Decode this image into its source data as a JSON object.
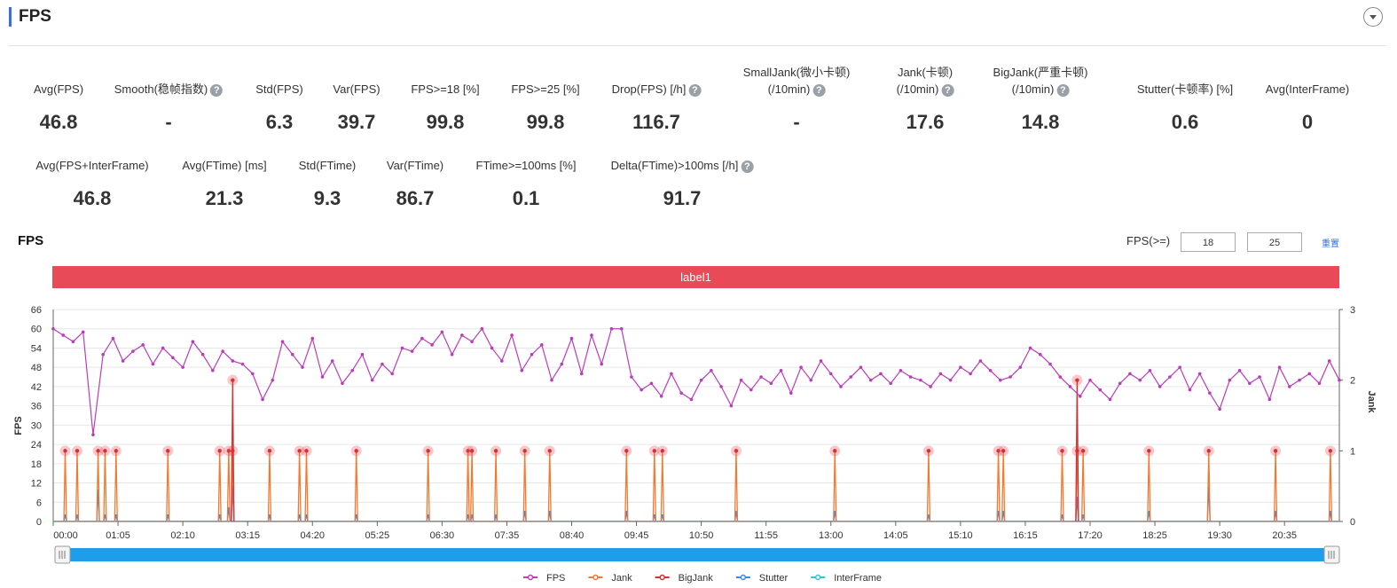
{
  "header": {
    "title": "FPS"
  },
  "metrics": [
    {
      "label": [
        "Avg(FPS)"
      ],
      "value": 46.8,
      "help": false
    },
    {
      "label": [
        "Smooth(稳帧指数)"
      ],
      "value": "-",
      "help": true
    },
    {
      "label": [
        "Std(FPS)"
      ],
      "value": 6.3,
      "help": false
    },
    {
      "label": [
        "Var(FPS)"
      ],
      "value": 39.7,
      "help": false
    },
    {
      "label": [
        "FPS>=18 [%]"
      ],
      "value": 99.8,
      "help": false
    },
    {
      "label": [
        "FPS>=25 [%]"
      ],
      "value": 99.8,
      "help": false
    },
    {
      "label": [
        "Drop(FPS) [/h]"
      ],
      "value": 116.7,
      "help": true
    },
    {
      "label": [
        "SmallJank(微小卡顿)",
        "(/10min)"
      ],
      "value": "-",
      "help": true
    },
    {
      "label": [
        "Jank(卡顿)",
        "(/10min)"
      ],
      "value": 17.6,
      "help": true
    },
    {
      "label": [
        "BigJank(严重卡顿)",
        "(/10min)"
      ],
      "value": 14.8,
      "help": true
    },
    {
      "label": [
        "Stutter(卡顿率) [%]"
      ],
      "value": 0.6,
      "help": false
    },
    {
      "label": [
        "Avg(InterFrame)"
      ],
      "value": 0,
      "help": false
    },
    {
      "label": [
        "Avg(FPS+InterFrame)"
      ],
      "value": 46.8,
      "help": false
    },
    {
      "label": [
        "Avg(FTime) [ms]"
      ],
      "value": 21.3,
      "help": false
    },
    {
      "label": [
        "Std(FTime)"
      ],
      "value": 9.3,
      "help": false
    },
    {
      "label": [
        "Var(FTime)"
      ],
      "value": 86.7,
      "help": false
    },
    {
      "label": [
        "FTime>=100ms [%]"
      ],
      "value": 0.1,
      "help": false
    },
    {
      "label": [
        "Delta(FTime)>100ms [/h]"
      ],
      "value": 91.7,
      "help": true
    }
  ],
  "controls": {
    "label": "FPS(>=)",
    "inputs": [
      18,
      25
    ],
    "reset": "重置"
  },
  "chart_data": {
    "type": "line",
    "title": "FPS",
    "band_label": "label1",
    "y_label": "FPS",
    "y2_label": "Jank",
    "xlim": [
      0,
      1290
    ],
    "xticks": [
      {
        "value": 0,
        "label": "00:00"
      },
      {
        "value": 65,
        "label": "01:05"
      },
      {
        "value": 130,
        "label": "02:10"
      },
      {
        "value": 195,
        "label": "03:15"
      },
      {
        "value": 260,
        "label": "04:20"
      },
      {
        "value": 325,
        "label": "05:25"
      },
      {
        "value": 390,
        "label": "06:30"
      },
      {
        "value": 455,
        "label": "07:35"
      },
      {
        "value": 520,
        "label": "08:40"
      },
      {
        "value": 585,
        "label": "09:45"
      },
      {
        "value": 650,
        "label": "10:50"
      },
      {
        "value": 715,
        "label": "11:55"
      },
      {
        "value": 780,
        "label": "13:00"
      },
      {
        "value": 845,
        "label": "14:05"
      },
      {
        "value": 910,
        "label": "15:10"
      },
      {
        "value": 975,
        "label": "16:15"
      },
      {
        "value": 1040,
        "label": "17:20"
      },
      {
        "value": 1105,
        "label": "18:25"
      },
      {
        "value": 1170,
        "label": "19:30"
      },
      {
        "value": 1235,
        "label": "20:35"
      }
    ],
    "ylim": [
      0,
      66
    ],
    "yticks": [
      0,
      6,
      12,
      18,
      24,
      30,
      36,
      42,
      48,
      54,
      60,
      66
    ],
    "y2lim": [
      0,
      3
    ],
    "y2ticks": [
      0,
      1,
      2,
      3
    ],
    "grid": true,
    "series": [
      {
        "name": "FPS",
        "color": "#bb3cbb",
        "axis": "y",
        "x": [
          0,
          10,
          20,
          30,
          40,
          50,
          60,
          70,
          80,
          90,
          100,
          110,
          120,
          130,
          140,
          150,
          160,
          170,
          180,
          190,
          200,
          210,
          220,
          230,
          240,
          250,
          260,
          270,
          280,
          290,
          300,
          310,
          320,
          330,
          340,
          350,
          360,
          370,
          380,
          390,
          400,
          410,
          420,
          430,
          440,
          450,
          460,
          470,
          480,
          490,
          500,
          510,
          520,
          530,
          540,
          550,
          560,
          570,
          580,
          590,
          600,
          610,
          620,
          630,
          640,
          650,
          660,
          670,
          680,
          690,
          700,
          710,
          720,
          730,
          740,
          750,
          760,
          770,
          780,
          790,
          800,
          810,
          820,
          830,
          840,
          850,
          860,
          870,
          880,
          890,
          900,
          910,
          920,
          930,
          940,
          950,
          960,
          970,
          980,
          990,
          1000,
          1010,
          1020,
          1030,
          1040,
          1050,
          1060,
          1070,
          1080,
          1090,
          1100,
          1110,
          1120,
          1130,
          1140,
          1150,
          1160,
          1170,
          1180,
          1190,
          1200,
          1210,
          1220,
          1230,
          1240,
          1250,
          1260,
          1270,
          1280,
          1290
        ],
        "values": [
          60,
          58,
          56,
          59,
          27,
          52,
          57,
          50,
          53,
          55,
          49,
          54,
          51,
          48,
          56,
          52,
          47,
          53,
          50,
          49,
          46,
          38,
          44,
          56,
          52,
          48,
          57,
          45,
          50,
          43,
          47,
          52,
          44,
          49,
          46,
          54,
          53,
          57,
          55,
          59,
          52,
          58,
          56,
          60,
          54,
          50,
          58,
          47,
          52,
          55,
          44,
          49,
          57,
          46,
          58,
          49,
          60,
          60,
          45,
          41,
          43,
          39,
          46,
          40,
          38,
          44,
          47,
          42,
          36,
          44,
          41,
          45,
          43,
          47,
          40,
          48,
          44,
          50,
          46,
          42,
          45,
          48,
          44,
          46,
          43,
          47,
          45,
          44,
          42,
          46,
          44,
          48,
          46,
          50,
          47,
          44,
          45,
          48,
          54,
          52,
          49,
          45,
          42,
          39,
          44,
          41,
          38,
          43,
          46,
          44,
          47,
          42,
          45,
          48,
          41,
          46,
          40,
          35,
          44,
          47,
          43,
          45,
          38,
          48,
          42,
          44,
          46,
          43,
          50,
          44
        ]
      },
      {
        "name": "Jank",
        "color": "#f07a30",
        "axis": "y2",
        "x": [
          12,
          24,
          45,
          52,
          63,
          115,
          167,
          176,
          180,
          217,
          247,
          254,
          304,
          376,
          416,
          420,
          444,
          473,
          498,
          575,
          603,
          611,
          685,
          784,
          878,
          948,
          953,
          1012,
          1027,
          1033,
          1099,
          1159,
          1226,
          1281
        ],
        "values": [
          1,
          1,
          1,
          1,
          1,
          1,
          1,
          1,
          1,
          1,
          1,
          1,
          1,
          1,
          1,
          1,
          1,
          1,
          1,
          1,
          1,
          1,
          1,
          1,
          1,
          1,
          1,
          1,
          1,
          1,
          1,
          1,
          1,
          1
        ]
      },
      {
        "name": "BigJank",
        "color": "#d8302e",
        "axis": "y2",
        "x": [
          180,
          1027
        ],
        "values": [
          2,
          2
        ]
      },
      {
        "name": "Stutter",
        "color": "#3f86e8",
        "axis": "y2",
        "x": [
          12,
          24,
          45,
          52,
          63,
          115,
          167,
          176,
          180,
          217,
          247,
          254,
          304,
          376,
          416,
          420,
          444,
          473,
          498,
          575,
          603,
          611,
          685,
          784,
          878,
          948,
          953,
          1012,
          1027,
          1033,
          1099,
          1159,
          1226,
          1281
        ],
        "values": [
          0.1,
          0.1,
          0.45,
          0.1,
          0.1,
          0.1,
          0.1,
          0.2,
          0.5,
          0.1,
          0.1,
          0.1,
          0.1,
          0.1,
          0.1,
          0.1,
          0.1,
          0.15,
          0.15,
          0.15,
          0.1,
          0.1,
          0.15,
          0.15,
          0.1,
          0.15,
          0.15,
          0.1,
          0.35,
          0.1,
          0.15,
          0.5,
          0.15,
          0.15
        ]
      },
      {
        "name": "InterFrame",
        "color": "#33c4d8",
        "axis": "y2",
        "x": [],
        "values": []
      }
    ]
  }
}
